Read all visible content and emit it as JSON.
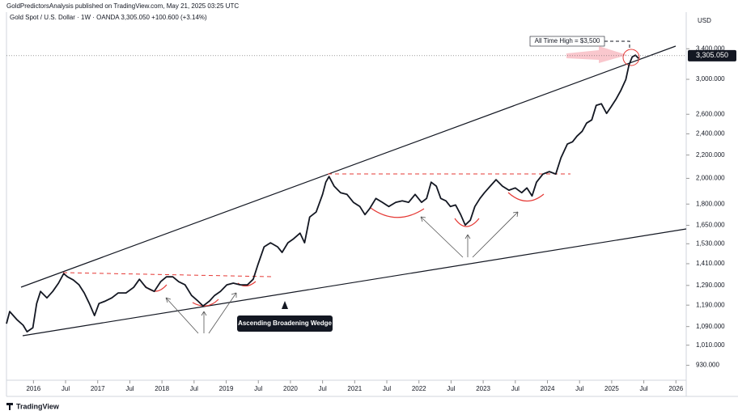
{
  "chart_data": {
    "type": "line",
    "title": "GoldPredictorsAnalysis published on TradingView.com, May 21, 2025 03:25 UTC",
    "subtitle": "Gold Spot / U.S. Dollar · 1W · OANDA  3,305.050  +100.600 (+3.14%)",
    "y_axis_label": "USD",
    "annotations": [
      "All Time High = $3,500",
      "Ascending Broadening Wedge"
    ],
    "brand": "TradingView",
    "last_price": 3305.05,
    "last_price_label": "3,305.050",
    "log_scale": true,
    "grid": false,
    "xlim": [
      2015.58,
      2026.16
    ],
    "ylim": [
      875,
      3950
    ],
    "xticks": [
      {
        "value": 2016,
        "label": "2016"
      },
      {
        "value": 2016.5,
        "label": "Jul"
      },
      {
        "value": 2017,
        "label": "2017"
      },
      {
        "value": 2017.5,
        "label": "Jul"
      },
      {
        "value": 2018,
        "label": "2018"
      },
      {
        "value": 2018.5,
        "label": "Jul"
      },
      {
        "value": 2019,
        "label": "2019"
      },
      {
        "value": 2019.5,
        "label": "Jul"
      },
      {
        "value": 2020,
        "label": "2020"
      },
      {
        "value": 2020.5,
        "label": "Jul"
      },
      {
        "value": 2021,
        "label": "2021"
      },
      {
        "value": 2021.5,
        "label": "Jul"
      },
      {
        "value": 2022,
        "label": "2022"
      },
      {
        "value": 2022.5,
        "label": "Jul"
      },
      {
        "value": 2023,
        "label": "2023"
      },
      {
        "value": 2023.5,
        "label": "Jul"
      },
      {
        "value": 2024,
        "label": "2024"
      },
      {
        "value": 2024.5,
        "label": "Jul"
      },
      {
        "value": 2025,
        "label": "2025"
      },
      {
        "value": 2025.5,
        "label": "Jul"
      },
      {
        "value": 2026,
        "label": "2026"
      }
    ],
    "yticks": [
      {
        "value": 3400,
        "label": "3,400.000"
      },
      {
        "value": 3000,
        "label": "3,000.000"
      },
      {
        "value": 2600,
        "label": "2,600.000"
      },
      {
        "value": 2400,
        "label": "2,400.000"
      },
      {
        "value": 2200,
        "label": "2,200.000"
      },
      {
        "value": 2000,
        "label": "2,000.000"
      },
      {
        "value": 1800,
        "label": "1,800.000"
      },
      {
        "value": 1650,
        "label": "1,650.000"
      },
      {
        "value": 1530,
        "label": "1,530.000"
      },
      {
        "value": 1410,
        "label": "1,410.000"
      },
      {
        "value": 1290,
        "label": "1,290.000"
      },
      {
        "value": 1190,
        "label": "1,190.000"
      },
      {
        "value": 1090,
        "label": "1,090.000"
      },
      {
        "value": 1010,
        "label": "1,010.000"
      },
      {
        "value": 930,
        "label": "930.000"
      }
    ],
    "series": [
      {
        "name": "Gold Spot / U.S. Dollar",
        "color": "#131722",
        "x": [
          2015.58,
          2015.63,
          2015.74,
          2015.84,
          2015.9,
          2015.99,
          2016.05,
          2016.11,
          2016.21,
          2016.3,
          2016.39,
          2016.47,
          2016.53,
          2016.62,
          2016.71,
          2016.79,
          2016.87,
          2016.95,
          2017.02,
          2017.12,
          2017.22,
          2017.32,
          2017.44,
          2017.56,
          2017.65,
          2017.75,
          2017.88,
          2017.98,
          2018.07,
          2018.17,
          2018.26,
          2018.36,
          2018.46,
          2018.56,
          2018.64,
          2018.74,
          2018.82,
          2018.91,
          2019.01,
          2019.11,
          2019.22,
          2019.33,
          2019.42,
          2019.49,
          2019.59,
          2019.69,
          2019.8,
          2019.87,
          2019.96,
          2020.05,
          2020.15,
          2020.22,
          2020.3,
          2020.4,
          2020.5,
          2020.55,
          2020.6,
          2020.68,
          2020.78,
          2020.88,
          2020.98,
          2021.08,
          2021.16,
          2021.23,
          2021.33,
          2021.43,
          2021.53,
          2021.64,
          2021.74,
          2021.84,
          2021.94,
          2022.04,
          2022.12,
          2022.19,
          2022.27,
          2022.34,
          2022.42,
          2022.49,
          2022.57,
          2022.65,
          2022.72,
          2022.8,
          2022.87,
          2022.95,
          2023.02,
          2023.11,
          2023.2,
          2023.3,
          2023.4,
          2023.5,
          2023.6,
          2023.68,
          2023.76,
          2023.83,
          2023.93,
          2024.03,
          2024.13,
          2024.21,
          2024.31,
          2024.39,
          2024.46,
          2024.54,
          2024.61,
          2024.69,
          2024.76,
          2024.84,
          2024.92,
          2024.99,
          2025.07,
          2025.14,
          2025.22,
          2025.27,
          2025.32,
          2025.37,
          2025.42
        ],
        "values": [
          1103,
          1159,
          1122,
          1096,
          1067,
          1085,
          1198,
          1259,
          1226,
          1259,
          1302,
          1354,
          1336,
          1319,
          1293,
          1251,
          1198,
          1140,
          1198,
          1210,
          1226,
          1251,
          1251,
          1280,
          1323,
          1280,
          1259,
          1310,
          1336,
          1336,
          1310,
          1293,
          1238,
          1210,
          1186,
          1210,
          1238,
          1259,
          1293,
          1302,
          1293,
          1293,
          1323,
          1400,
          1511,
          1536,
          1511,
          1477,
          1536,
          1562,
          1598,
          1536,
          1707,
          1742,
          1873,
          1969,
          2015,
          1937,
          1886,
          1873,
          1813,
          1782,
          1724,
          1765,
          1842,
          1813,
          1782,
          1813,
          1824,
          1813,
          1873,
          1813,
          1842,
          1969,
          1937,
          1842,
          1824,
          1782,
          1793,
          1724,
          1652,
          1685,
          1782,
          1842,
          1886,
          1937,
          1989,
          1937,
          1905,
          1923,
          1886,
          1923,
          1861,
          1969,
          2035,
          2056,
          2035,
          2175,
          2301,
          2323,
          2377,
          2425,
          2507,
          2541,
          2697,
          2714,
          2609,
          2680,
          2769,
          2863,
          2998,
          3182,
          3289,
          3312,
          3267
        ]
      }
    ]
  }
}
